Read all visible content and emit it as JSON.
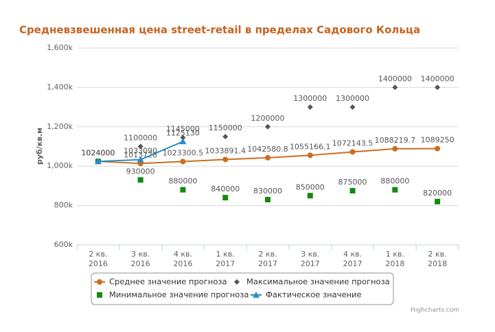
{
  "chart_data": {
    "type": "line",
    "title": "Средневзвешенная цена street-retail в пределах Садового Кольца",
    "y_axis_label": "руб/кв.м",
    "categories": [
      "2 кв. 2016",
      "3 кв. 2016",
      "4 кв. 2016",
      "1 кв. 2017",
      "2 кв. 2017",
      "3 кв. 2017",
      "4 кв. 2017",
      "1 кв. 2018",
      "2 кв. 2018"
    ],
    "ylim": [
      600000,
      1600000
    ],
    "yticks": [
      {
        "value": 600000,
        "label": "600k"
      },
      {
        "value": 800000,
        "label": "800k"
      },
      {
        "value": 1000000,
        "label": "1,000k"
      },
      {
        "value": 1200000,
        "label": "1,200k"
      },
      {
        "value": 1400000,
        "label": "1,400k"
      },
      {
        "value": 1600000,
        "label": "1,600k"
      }
    ],
    "grid": true,
    "legend": "bottom",
    "credits": "Highcharts.com",
    "series": [
      {
        "name": "Среднее значение прогноза",
        "color": "#cc6d1e",
        "marker": "circle",
        "line": true,
        "values": [
          1024000,
          1013728,
          1023300.5,
          1033891.4,
          1042580.8,
          1055166.1,
          1072143.5,
          1088219.7,
          1089250
        ]
      },
      {
        "name": "Максимальное значение прогноза",
        "color": "#555555",
        "marker": "diamond",
        "line": false,
        "values": [
          1024000,
          1100000,
          1145000,
          1150000,
          1200000,
          1300000,
          1300000,
          1400000,
          1400000
        ]
      },
      {
        "name": "Минимальное значение прогноза",
        "color": "#118a11",
        "marker": "square",
        "line": false,
        "values": [
          1024000,
          930000,
          880000,
          840000,
          830000,
          850000,
          875000,
          880000,
          820000
        ]
      },
      {
        "name": "Фактическое значение",
        "color": "#2a8cc4",
        "marker": "triangle",
        "line": true,
        "values": [
          1024000,
          1033090,
          1125130,
          null,
          null,
          null,
          null,
          null,
          null
        ]
      }
    ]
  }
}
